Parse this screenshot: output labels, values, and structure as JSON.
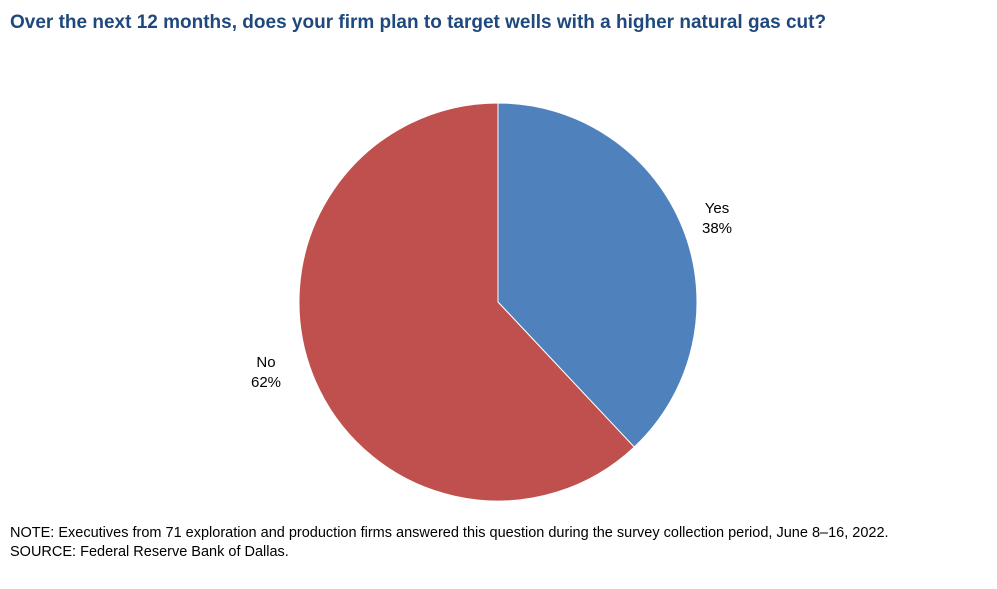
{
  "chart_data": {
    "type": "pie",
    "title": "Over the next 12 months, does your firm plan to target wells with a higher natural gas cut?",
    "slices": [
      {
        "label": "Yes",
        "value": 38,
        "display": "38%",
        "color": "#4f81bd"
      },
      {
        "label": "No",
        "value": 62,
        "display": "62%",
        "color": "#c0504d"
      }
    ],
    "start_angle": "12 o'clock",
    "direction": "clockwise"
  },
  "note": "NOTE: Executives from 71 exploration and production firms answered this question during the survey collection period, June 8–16, 2022.",
  "source": "SOURCE: Federal Reserve Bank of Dallas.",
  "colors": {
    "title": "#1f497d",
    "yes": "#4f81bd",
    "no": "#c0504d"
  }
}
